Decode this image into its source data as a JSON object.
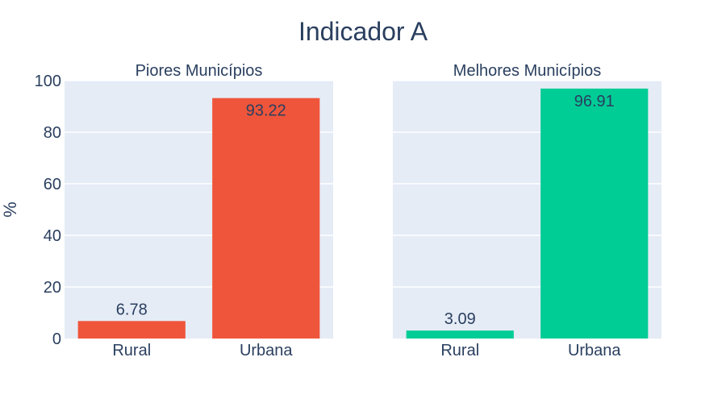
{
  "chart_data": {
    "type": "bar",
    "title": "Indicador A",
    "ylabel": "%",
    "ylim": [
      0,
      100
    ],
    "yticks": [
      0,
      20,
      40,
      60,
      80,
      100
    ],
    "grid": true,
    "panels": [
      {
        "subtitle": "Piores Municípios",
        "categories": [
          "Rural",
          "Urbana"
        ],
        "values": [
          6.78,
          93.22
        ],
        "labels": [
          "6.78",
          "93.22"
        ],
        "color": "#ef553b"
      },
      {
        "subtitle": "Melhores Municípios",
        "categories": [
          "Rural",
          "Urbana"
        ],
        "values": [
          3.09,
          96.91
        ],
        "labels": [
          "3.09",
          "96.91"
        ],
        "color": "#00cc96"
      }
    ],
    "colors": {
      "plot_bg": "#e5ecf6",
      "grid": "#ffffff",
      "text": "#2a3f5f"
    }
  }
}
